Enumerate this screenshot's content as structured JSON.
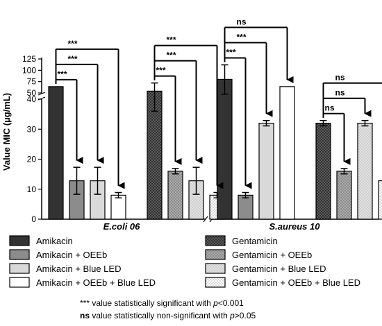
{
  "chart_data": {
    "type": "bar",
    "ylabel": "Value MIC (µg/mL)",
    "y_ticks_lower": [
      "0",
      "10",
      "20",
      "30",
      "40"
    ],
    "y_ticks_upper": [
      "50",
      "75",
      "100",
      "125"
    ],
    "ylim_lower": [
      0,
      40
    ],
    "ylim_upper": [
      50,
      125
    ],
    "groups": [
      {
        "label": "E.coli 06",
        "bars": [
          {
            "name": "Amikacin",
            "value": 64,
            "error": 0,
            "style": "dark"
          },
          {
            "name": "Amikacin + OEEb",
            "value": 12.8,
            "error": 4.5,
            "style": "gray"
          },
          {
            "name": "Amikacin + Blue LED",
            "value": 12.8,
            "error": 4.5,
            "style": "light"
          },
          {
            "name": "Amikacin + OEEb + Blue LED",
            "value": 8,
            "error": 0.9,
            "style": "white"
          },
          {
            "name": "Gentamicin",
            "value": 54,
            "error": 18,
            "style": "dark-pattern"
          },
          {
            "name": "Gentamicin + OEEb",
            "value": 16,
            "error": 0.9,
            "style": "gray-pattern"
          },
          {
            "name": "Gentamicin + Blue LED",
            "value": 12.8,
            "error": 4.5,
            "style": "light-pattern"
          },
          {
            "name": "Gentamicin + OEEb + Blue LED",
            "value": 8,
            "error": 0.9,
            "style": "white-pattern"
          }
        ]
      },
      {
        "label": "S.aureus 10",
        "bars": [
          {
            "name": "Amikacin",
            "value": 80,
            "error": 32,
            "style": "dark"
          },
          {
            "name": "Amikacin + OEEb",
            "value": 8,
            "error": 0.9,
            "style": "gray"
          },
          {
            "name": "Amikacin + Blue LED",
            "value": 32,
            "error": 0.9,
            "style": "light"
          },
          {
            "name": "Amikacin + OEEb + Blue LED",
            "value": 64,
            "error": 0,
            "style": "white"
          },
          {
            "name": "Gentamicin",
            "value": 32,
            "error": 0.9,
            "style": "dark-pattern"
          },
          {
            "name": "Gentamicin + OEEb",
            "value": 16,
            "error": 0.9,
            "style": "gray-pattern"
          },
          {
            "name": "Gentamicin + Blue LED",
            "value": 32,
            "error": 0.9,
            "style": "light-pattern"
          },
          {
            "name": "Gentamicin + OEEb + Blue LED",
            "value": 12.8,
            "error": 4.5,
            "style": "white-pattern"
          }
        ]
      }
    ],
    "significance": [
      {
        "group": 0,
        "from": 0,
        "to": 1,
        "label": "***"
      },
      {
        "group": 0,
        "from": 0,
        "to": 2,
        "label": "***"
      },
      {
        "group": 0,
        "from": 0,
        "to": 3,
        "label": "***"
      },
      {
        "group": 0,
        "from": 4,
        "to": 5,
        "label": "***"
      },
      {
        "group": 0,
        "from": 4,
        "to": 6,
        "label": "***"
      },
      {
        "group": 0,
        "from": 4,
        "to": 7,
        "label": "***"
      },
      {
        "group": 1,
        "from": 0,
        "to": 1,
        "label": "***"
      },
      {
        "group": 1,
        "from": 0,
        "to": 2,
        "label": "***"
      },
      {
        "group": 1,
        "from": 0,
        "to": 3,
        "label": "ns"
      },
      {
        "group": 1,
        "from": 4,
        "to": 5,
        "label": "ns"
      },
      {
        "group": 1,
        "from": 4,
        "to": 6,
        "label": "ns"
      },
      {
        "group": 1,
        "from": 4,
        "to": 7,
        "label": "ns"
      }
    ],
    "legend": [
      {
        "label": "Amikacin",
        "style": "dark"
      },
      {
        "label": "Amikacin + OEEb",
        "style": "gray"
      },
      {
        "label": "Amikacin + Blue LED",
        "style": "light"
      },
      {
        "label": "Amikacin + OEEb + Blue LED",
        "style": "white"
      },
      {
        "label": "Gentamicin",
        "style": "dark-pattern"
      },
      {
        "label": "Gentamicin + OEEb",
        "style": "gray-pattern"
      },
      {
        "label": "Gentamicin + Blue LED",
        "style": "light-pattern"
      },
      {
        "label": "Gentamicin + OEEb + Blue LED",
        "style": "white-pattern"
      }
    ],
    "colors": {
      "dark": "#333333",
      "gray": "#8c8c8c",
      "light": "#d9d9d9",
      "white": "#ffffff"
    },
    "footnotes": [
      {
        "marker": "***",
        "text": " value statistically significant with ",
        "p": "p",
        "tail": "<0.001"
      },
      {
        "marker": "ns",
        "text": " value statistically non-significant with ",
        "p": "p",
        "tail": ">0.05"
      }
    ]
  }
}
